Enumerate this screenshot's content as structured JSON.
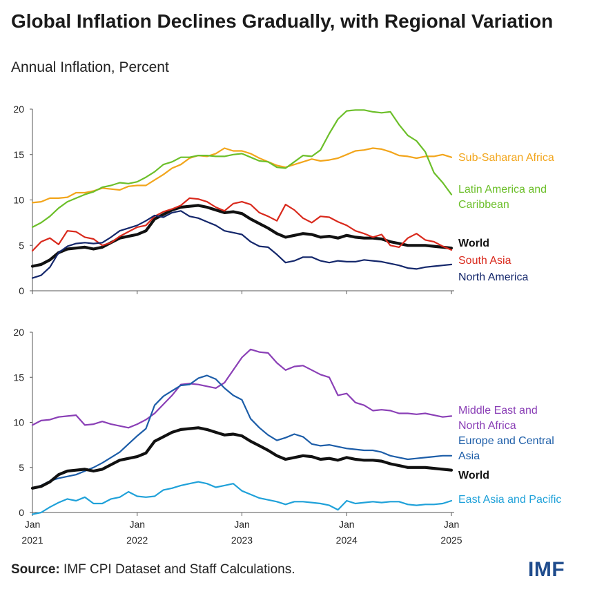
{
  "title": "Global Inflation Declines Gradually, with Regional Variation",
  "subtitle": "Annual Inflation, Percent",
  "source_label": "Source:",
  "source_text": "IMF CPI Dataset and Staff Calculations.",
  "logo": "IMF",
  "chart_data": [
    {
      "type": "line",
      "panel": "top",
      "ylim": [
        0,
        20
      ],
      "yticks": [
        0,
        5,
        10,
        15,
        20
      ],
      "xlim": [
        0,
        48
      ],
      "xticks": [
        {
          "pos": 0,
          "line1": "Jan",
          "line2": "2021"
        },
        {
          "pos": 12,
          "line1": "Jan",
          "line2": "2022"
        },
        {
          "pos": 24,
          "line1": "Jan",
          "line2": "2023"
        },
        {
          "pos": 36,
          "line1": "Jan",
          "line2": "2024"
        },
        {
          "pos": 48,
          "line1": "Jan",
          "line2": "2025"
        }
      ],
      "series": [
        {
          "name": "Sub-Saharan Africa",
          "label": [
            "Sub-Saharan Africa"
          ],
          "color": "#f2a51b",
          "width": 2.2,
          "values": [
            9.7,
            9.8,
            10.2,
            10.2,
            10.3,
            10.8,
            10.8,
            11.0,
            11.3,
            11.2,
            11.1,
            11.5,
            11.6,
            11.6,
            12.2,
            12.8,
            13.5,
            13.9,
            14.6,
            14.9,
            14.8,
            15.1,
            15.7,
            15.4,
            15.4,
            15.1,
            14.6,
            14.2,
            13.8,
            13.6,
            13.9,
            14.2,
            14.5,
            14.3,
            14.4,
            14.6,
            15.0,
            15.4,
            15.5,
            15.7,
            15.6,
            15.3,
            14.9,
            14.8,
            14.6,
            14.8,
            14.8,
            15.0,
            14.7
          ]
        },
        {
          "name": "Latin America and Caribbean",
          "label": [
            "Latin America and",
            "Caribbean"
          ],
          "color": "#6cbf2a",
          "width": 2.2,
          "values": [
            7.0,
            7.5,
            8.2,
            9.1,
            9.8,
            10.2,
            10.6,
            10.9,
            11.4,
            11.6,
            11.9,
            11.8,
            12.0,
            12.5,
            13.1,
            13.9,
            14.2,
            14.7,
            14.7,
            14.9,
            14.9,
            14.8,
            14.8,
            15.0,
            15.1,
            14.7,
            14.3,
            14.2,
            13.6,
            13.5,
            14.2,
            14.9,
            14.8,
            15.5,
            17.3,
            18.9,
            19.8,
            19.9,
            19.9,
            19.7,
            19.6,
            19.7,
            18.3,
            17.1,
            16.5,
            15.3,
            13.0,
            11.9,
            10.6
          ]
        },
        {
          "name": "World",
          "label": [
            "World"
          ],
          "color": "#111111",
          "width": 4.2,
          "bold": true,
          "values": [
            2.7,
            2.9,
            3.4,
            4.2,
            4.6,
            4.7,
            4.8,
            4.6,
            4.8,
            5.3,
            5.8,
            6.0,
            6.2,
            6.6,
            7.9,
            8.4,
            8.9,
            9.2,
            9.3,
            9.4,
            9.2,
            8.9,
            8.6,
            8.7,
            8.5,
            7.9,
            7.4,
            6.9,
            6.3,
            5.9,
            6.1,
            6.3,
            6.2,
            5.9,
            6.0,
            5.8,
            6.1,
            5.9,
            5.8,
            5.8,
            5.7,
            5.4,
            5.2,
            5.0,
            5.0,
            5.0,
            4.9,
            4.8,
            4.7
          ]
        },
        {
          "name": "South Asia",
          "label": [
            "South Asia"
          ],
          "color": "#d9291c",
          "width": 2.2,
          "values": [
            4.4,
            5.4,
            5.8,
            5.1,
            6.6,
            6.5,
            5.9,
            5.7,
            5.0,
            5.3,
            6.0,
            6.5,
            7.0,
            7.2,
            8.2,
            8.7,
            9.0,
            9.4,
            10.2,
            10.1,
            9.8,
            9.2,
            8.8,
            9.6,
            9.8,
            9.5,
            8.6,
            8.2,
            7.7,
            9.5,
            8.9,
            8.0,
            7.5,
            8.2,
            8.1,
            7.6,
            7.2,
            6.6,
            6.3,
            5.9,
            6.2,
            5.0,
            4.8,
            5.8,
            6.3,
            5.6,
            5.4,
            4.9,
            4.5
          ]
        },
        {
          "name": "North America",
          "label": [
            "North America"
          ],
          "color": "#14276b",
          "width": 2.2,
          "values": [
            1.4,
            1.7,
            2.6,
            4.2,
            4.9,
            5.2,
            5.3,
            5.2,
            5.3,
            5.9,
            6.6,
            6.9,
            7.2,
            7.7,
            8.3,
            8.1,
            8.6,
            8.8,
            8.2,
            8.0,
            7.6,
            7.2,
            6.6,
            6.4,
            6.2,
            5.4,
            4.9,
            4.8,
            4.0,
            3.1,
            3.3,
            3.7,
            3.7,
            3.3,
            3.1,
            3.3,
            3.2,
            3.2,
            3.4,
            3.3,
            3.2,
            3.0,
            2.8,
            2.5,
            2.4,
            2.6,
            2.7,
            2.8,
            2.9
          ]
        }
      ]
    },
    {
      "type": "line",
      "panel": "bottom",
      "ylim": [
        0,
        20
      ],
      "yticks": [
        0,
        5,
        10,
        15,
        20
      ],
      "xlim": [
        0,
        48
      ],
      "xticks": [
        {
          "pos": 0,
          "line1": "Jan",
          "line2": "2021"
        },
        {
          "pos": 12,
          "line1": "Jan",
          "line2": "2022"
        },
        {
          "pos": 24,
          "line1": "Jan",
          "line2": "2023"
        },
        {
          "pos": 36,
          "line1": "Jan",
          "line2": "2024"
        },
        {
          "pos": 48,
          "line1": "Jan",
          "line2": "2025"
        }
      ],
      "series": [
        {
          "name": "Middle East and North Africa",
          "label": [
            "Middle East and",
            "North Africa"
          ],
          "color": "#8a3fb6",
          "width": 2.2,
          "values": [
            9.7,
            10.2,
            10.3,
            10.6,
            10.7,
            10.8,
            9.7,
            9.8,
            10.1,
            9.8,
            9.6,
            9.4,
            9.8,
            10.3,
            11.0,
            12.0,
            13.0,
            14.2,
            14.3,
            14.2,
            14.0,
            13.8,
            14.4,
            15.8,
            17.2,
            18.1,
            17.8,
            17.7,
            16.6,
            15.8,
            16.2,
            16.3,
            15.8,
            15.3,
            15.0,
            13.0,
            13.2,
            12.2,
            11.9,
            11.3,
            11.4,
            11.3,
            11.0,
            11.0,
            10.9,
            11.0,
            10.8,
            10.6,
            10.7
          ]
        },
        {
          "name": "Europe and Central Asia",
          "label": [
            "Europe and Central",
            "Asia"
          ],
          "color": "#1c5da8",
          "width": 2.2,
          "values": [
            2.7,
            3.0,
            3.5,
            3.8,
            4.0,
            4.2,
            4.6,
            5.0,
            5.5,
            6.1,
            6.7,
            7.6,
            8.5,
            9.3,
            11.9,
            12.9,
            13.5,
            14.1,
            14.2,
            14.9,
            15.2,
            14.8,
            13.8,
            13.0,
            12.5,
            10.4,
            9.4,
            8.6,
            8.0,
            8.3,
            8.7,
            8.4,
            7.6,
            7.4,
            7.5,
            7.3,
            7.1,
            7.0,
            6.9,
            6.9,
            6.7,
            6.3,
            6.1,
            5.9,
            6.0,
            6.1,
            6.2,
            6.3,
            6.3
          ]
        },
        {
          "name": "World",
          "label": [
            "World"
          ],
          "color": "#111111",
          "width": 4.2,
          "bold": true,
          "values": [
            2.7,
            2.9,
            3.4,
            4.2,
            4.6,
            4.7,
            4.8,
            4.6,
            4.8,
            5.3,
            5.8,
            6.0,
            6.2,
            6.6,
            7.9,
            8.4,
            8.9,
            9.2,
            9.3,
            9.4,
            9.2,
            8.9,
            8.6,
            8.7,
            8.5,
            7.9,
            7.4,
            6.9,
            6.3,
            5.9,
            6.1,
            6.3,
            6.2,
            5.9,
            6.0,
            5.8,
            6.1,
            5.9,
            5.8,
            5.8,
            5.7,
            5.4,
            5.2,
            5.0,
            5.0,
            5.0,
            4.9,
            4.8,
            4.7
          ]
        },
        {
          "name": "East Asia and Pacific",
          "label": [
            "East Asia and Pacific"
          ],
          "color": "#1fa1d9",
          "width": 2.2,
          "values": [
            -0.2,
            0.0,
            0.6,
            1.1,
            1.5,
            1.3,
            1.7,
            1.0,
            1.0,
            1.5,
            1.7,
            2.3,
            1.8,
            1.7,
            1.8,
            2.5,
            2.7,
            3.0,
            3.2,
            3.4,
            3.2,
            2.8,
            3.0,
            3.2,
            2.4,
            2.0,
            1.6,
            1.4,
            1.2,
            0.9,
            1.2,
            1.2,
            1.1,
            1.0,
            0.8,
            0.3,
            1.3,
            1.0,
            1.1,
            1.2,
            1.1,
            1.2,
            1.2,
            0.9,
            0.8,
            0.9,
            0.9,
            1.0,
            1.3
          ]
        }
      ]
    }
  ]
}
